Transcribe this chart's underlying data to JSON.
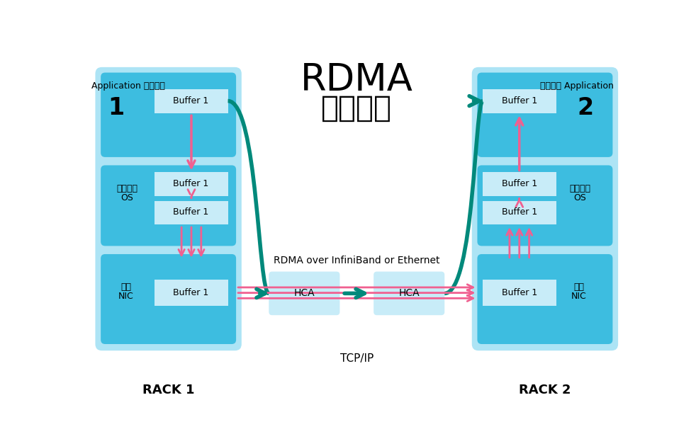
{
  "title_line1": "RDMA",
  "title_line2": "工作原理",
  "rack1_label": "RACK 1",
  "rack2_label": "RACK 2",
  "rack_bg": "#ade4f5",
  "app_bg": "#3dbde0",
  "os_bg": "#3dbde0",
  "nic_bg": "#3dbde0",
  "buffer_bg": "#c8ecf8",
  "hca_bg": "#c8ecf8",
  "teal_color": "#00897b",
  "pink_color": "#f06090",
  "left_app_label1": "Application 应用程序",
  "left_app_label2": "1",
  "left_os_label1": "操作系统",
  "left_os_label2": "OS",
  "left_nic_label1": "网卡",
  "left_nic_label2": "NIC",
  "right_app_label1": "应用程序 Application",
  "right_app_label2": "2",
  "right_os_label1": "操作系统",
  "right_os_label2": "OS",
  "right_nic_label1": "网卡",
  "right_nic_label2": "NIC",
  "rdma_label": "RDMA over InfiniBand or Ethernet",
  "tcp_label": "TCP/IP",
  "buffer_label": "Buffer 1",
  "hca_label": "HCA"
}
